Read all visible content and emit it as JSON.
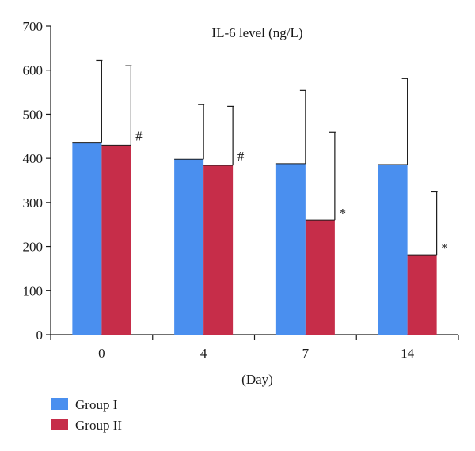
{
  "chart_data": {
    "type": "bar",
    "title": "IL-6 level (ng/L)",
    "xlabel": "(Day)",
    "ylabel": "",
    "ylim": [
      0,
      700
    ],
    "yticks": [
      0,
      100,
      200,
      300,
      400,
      500,
      600,
      700
    ],
    "categories": [
      "0",
      "4",
      "7",
      "14"
    ],
    "series": [
      {
        "name": "Group I",
        "color": "#4a8fef",
        "values": [
          435,
          398,
          388,
          386
        ],
        "error_upper": [
          622,
          522,
          554,
          581
        ],
        "marks": [
          "",
          "",
          "",
          ""
        ]
      },
      {
        "name": "Group II",
        "color": "#c62d49",
        "values": [
          430,
          384,
          260,
          181
        ],
        "error_upper": [
          610,
          518,
          459,
          324
        ],
        "marks": [
          "#",
          "#",
          "*",
          "*"
        ]
      }
    ],
    "legend": [
      "Group I",
      "Group II"
    ],
    "legend_position": "bottom-left",
    "grid": false
  }
}
